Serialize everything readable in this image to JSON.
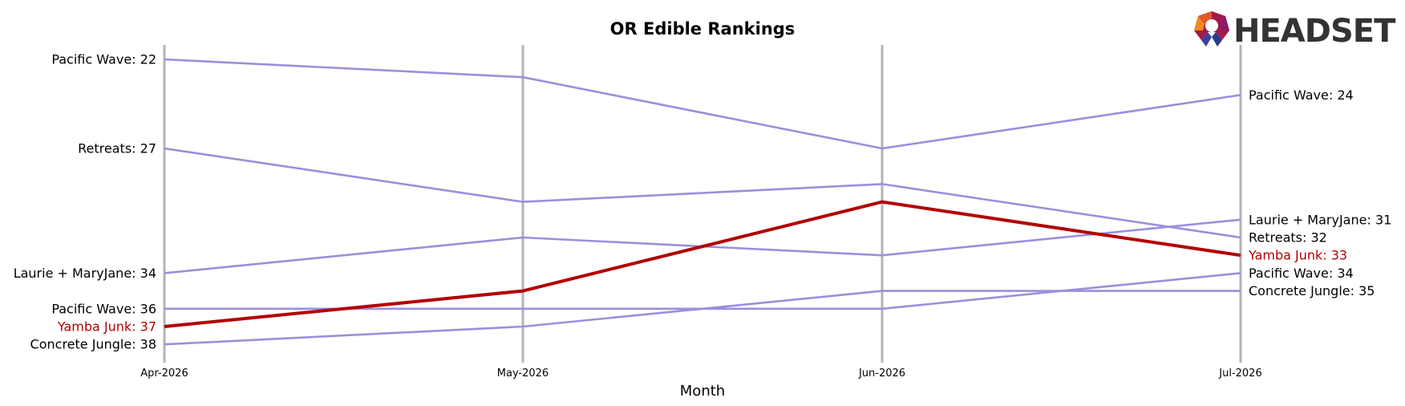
{
  "chart_data": {
    "type": "line",
    "title": "OR Edible Rankings",
    "xlabel": "Month",
    "ylabel": "",
    "x": [
      "Apr-2026",
      "May-2026",
      "Jun-2026",
      "Jul-2026"
    ],
    "ylim": [
      39,
      20.8
    ],
    "y_inverted": true,
    "grid": "vertical lines at each month",
    "legend": "none (direct labels at line ends)",
    "series": [
      {
        "name": "Pacific Wave",
        "values": [
          22,
          23,
          27,
          24
        ],
        "color": "#9b8fdc",
        "highlight": false
      },
      {
        "name": "Retreats",
        "values": [
          27,
          30,
          29,
          32
        ],
        "color": "#9b8fdc",
        "highlight": false
      },
      {
        "name": "Laurie + MaryJane",
        "values": [
          34,
          32,
          33,
          31
        ],
        "color": "#9b8fdc",
        "highlight": false
      },
      {
        "name": "Pacific Wave",
        "values": [
          36,
          36,
          36,
          34
        ],
        "color": "#9b8fdc",
        "highlight": false
      },
      {
        "name": "Concrete Jungle",
        "values": [
          38,
          37,
          35,
          35
        ],
        "color": "#9b8fdc",
        "highlight": false
      },
      {
        "name": "Yamba Junk",
        "values": [
          37,
          35,
          30,
          33
        ],
        "color": "#b30000",
        "highlight": true
      }
    ],
    "start_labels": [
      {
        "text": "Pacific Wave: 22",
        "value": 22,
        "color": "#000000"
      },
      {
        "text": "Retreats: 27",
        "value": 27,
        "color": "#000000"
      },
      {
        "text": "Laurie + MaryJane: 34",
        "value": 34,
        "color": "#000000"
      },
      {
        "text": "Pacific Wave: 36",
        "value": 36,
        "color": "#000000"
      },
      {
        "text": "Yamba Junk: 37",
        "value": 37,
        "color": "#b30000"
      },
      {
        "text": "Concrete Jungle: 38",
        "value": 38,
        "color": "#000000"
      }
    ],
    "end_labels": [
      {
        "text": "Pacific Wave: 24",
        "value": 24,
        "color": "#000000"
      },
      {
        "text": "Laurie + MaryJane: 31",
        "value": 31,
        "color": "#000000"
      },
      {
        "text": "Retreats: 32",
        "value": 32,
        "color": "#000000"
      },
      {
        "text": "Yamba Junk: 33",
        "value": 33,
        "color": "#b30000"
      },
      {
        "text": "Pacific Wave: 34",
        "value": 34,
        "color": "#000000"
      },
      {
        "text": "Concrete Jungle: 35",
        "value": 35,
        "color": "#000000"
      }
    ]
  },
  "logo": {
    "text": "HEADSET",
    "icon": "headset-logo-icon"
  },
  "colors": {
    "gridline": "#b3b3b3",
    "muted_line": "#9b8fdc",
    "highlight": "#b30000"
  }
}
